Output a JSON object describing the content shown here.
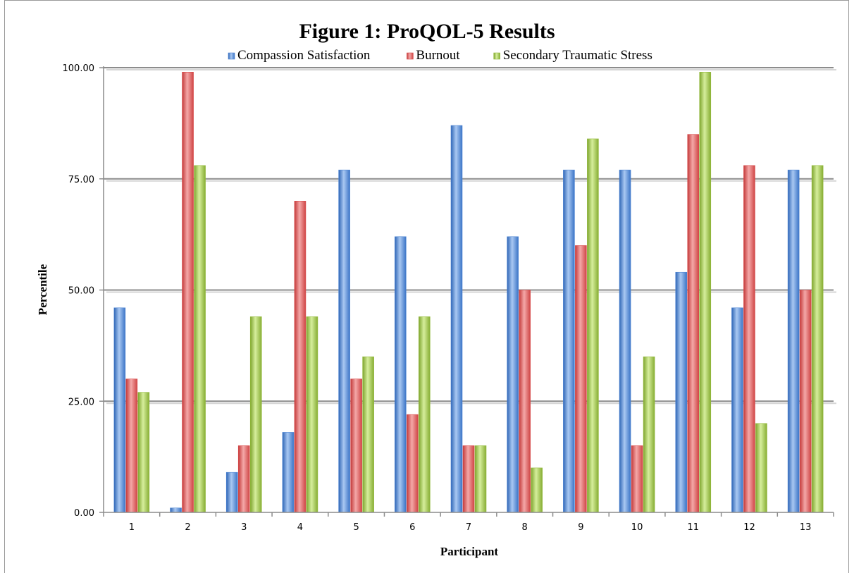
{
  "chart_data": {
    "type": "bar",
    "title": "Figure 1: ProQOL-5 Results",
    "xlabel": "Participant",
    "ylabel": "Percentile",
    "ylim": [
      0,
      100
    ],
    "yticks": [
      "0.00",
      "25.00",
      "50.00",
      "75.00",
      "100.00"
    ],
    "grid": true,
    "legend_position": "top",
    "categories": [
      "1",
      "2",
      "3",
      "4",
      "5",
      "6",
      "7",
      "8",
      "9",
      "10",
      "11",
      "12",
      "13"
    ],
    "series": [
      {
        "name": "Compassion Satisfaction",
        "color": "#4f86d4",
        "values": [
          46,
          1,
          9,
          18,
          77,
          62,
          87,
          62,
          77,
          77,
          54,
          46,
          77
        ]
      },
      {
        "name": "Burnout",
        "color": "#d94c4c",
        "values": [
          30,
          99,
          15,
          70,
          30,
          22,
          15,
          50,
          60,
          15,
          85,
          78,
          50
        ]
      },
      {
        "name": "Secondary Traumatic Stress",
        "color": "#95bb3e",
        "values": [
          27,
          78,
          44,
          44,
          35,
          44,
          15,
          10,
          84,
          35,
          99,
          20,
          78
        ]
      }
    ]
  }
}
